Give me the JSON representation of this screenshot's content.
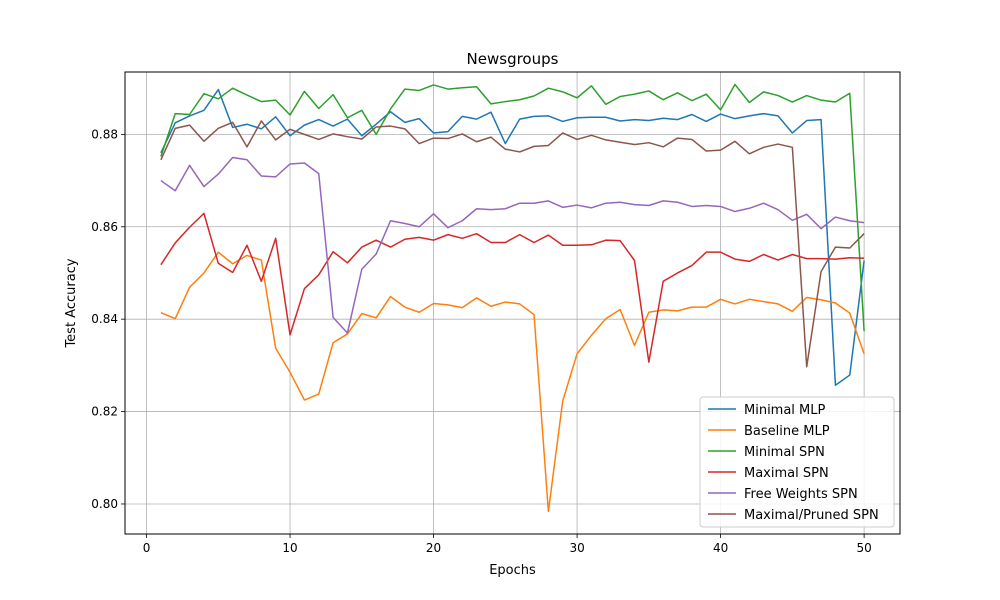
{
  "chart_data": {
    "type": "line",
    "title": "Newsgroups",
    "xlabel": "Epochs",
    "ylabel": "Test Accuracy",
    "xlim": [
      -1.5,
      52.5
    ],
    "ylim": [
      0.7935,
      0.8935
    ],
    "xticks": [
      0,
      10,
      20,
      30,
      40,
      50
    ],
    "yticks": [
      0.8,
      0.82,
      0.84,
      0.86,
      0.88
    ],
    "xtick_labels": [
      "0",
      "10",
      "20",
      "30",
      "40",
      "50"
    ],
    "ytick_labels": [
      "0.80",
      "0.82",
      "0.84",
      "0.86",
      "0.88"
    ],
    "grid": true,
    "legend_position": "lower-right",
    "x": [
      1,
      2,
      3,
      4,
      5,
      6,
      7,
      8,
      9,
      10,
      11,
      12,
      13,
      14,
      15,
      16,
      17,
      18,
      19,
      20,
      21,
      22,
      23,
      24,
      25,
      26,
      27,
      28,
      29,
      30,
      31,
      32,
      33,
      34,
      35,
      36,
      37,
      38,
      39,
      40,
      41,
      42,
      43,
      44,
      45,
      46,
      47,
      48,
      49,
      50
    ],
    "series": [
      {
        "name": "Minimal MLP",
        "color": "#1f77b4",
        "values": [
          0.876,
          0.8825,
          0.884,
          0.8852,
          0.8897,
          0.8815,
          0.8822,
          0.8812,
          0.8838,
          0.8797,
          0.882,
          0.8832,
          0.8818,
          0.8833,
          0.8797,
          0.8822,
          0.8849,
          0.8826,
          0.8834,
          0.8803,
          0.8806,
          0.8839,
          0.8833,
          0.8848,
          0.878,
          0.8833,
          0.8839,
          0.884,
          0.8828,
          0.8836,
          0.8837,
          0.8837,
          0.8829,
          0.8832,
          0.883,
          0.8835,
          0.8832,
          0.8843,
          0.8828,
          0.8844,
          0.8834,
          0.884,
          0.8845,
          0.884,
          0.8803,
          0.883,
          0.8832,
          0.8257,
          0.8279,
          0.8527
        ]
      },
      {
        "name": "Baseline MLP",
        "color": "#ff7f0e",
        "values": [
          0.8414,
          0.8401,
          0.8469,
          0.85,
          0.8545,
          0.852,
          0.8538,
          0.8528,
          0.8337,
          0.8285,
          0.8225,
          0.8238,
          0.8349,
          0.8368,
          0.8412,
          0.8403,
          0.8449,
          0.8426,
          0.8415,
          0.8434,
          0.8431,
          0.8425,
          0.8446,
          0.8428,
          0.8437,
          0.8433,
          0.841,
          0.7984,
          0.8223,
          0.8325,
          0.8365,
          0.8401,
          0.8421,
          0.8343,
          0.8415,
          0.842,
          0.8418,
          0.8426,
          0.8426,
          0.8443,
          0.8433,
          0.8443,
          0.8438,
          0.8433,
          0.8417,
          0.8447,
          0.8442,
          0.8435,
          0.8413,
          0.8325
        ]
      },
      {
        "name": "Minimal SPN",
        "color": "#2ca02c",
        "values": [
          0.8752,
          0.8845,
          0.8843,
          0.8888,
          0.8877,
          0.89,
          0.8885,
          0.8871,
          0.8874,
          0.8842,
          0.8893,
          0.8856,
          0.8886,
          0.8836,
          0.8852,
          0.88,
          0.8855,
          0.8898,
          0.8895,
          0.8907,
          0.8898,
          0.8901,
          0.8903,
          0.8866,
          0.8871,
          0.8875,
          0.8883,
          0.89,
          0.8892,
          0.8879,
          0.8905,
          0.8865,
          0.8882,
          0.8887,
          0.8894,
          0.8875,
          0.889,
          0.8873,
          0.8887,
          0.8853,
          0.8908,
          0.8869,
          0.8892,
          0.8884,
          0.887,
          0.8884,
          0.8874,
          0.887,
          0.8889,
          0.8374
        ]
      },
      {
        "name": "Maximal SPN",
        "color": "#d62728",
        "values": [
          0.8518,
          0.8565,
          0.8599,
          0.8629,
          0.8521,
          0.8501,
          0.856,
          0.8482,
          0.8575,
          0.8366,
          0.8466,
          0.8496,
          0.8546,
          0.8522,
          0.8556,
          0.8571,
          0.8556,
          0.8573,
          0.8577,
          0.8571,
          0.8583,
          0.8575,
          0.8585,
          0.8566,
          0.8566,
          0.8583,
          0.8566,
          0.8582,
          0.856,
          0.856,
          0.8561,
          0.8571,
          0.857,
          0.8527,
          0.8307,
          0.8482,
          0.85,
          0.8516,
          0.8545,
          0.8545,
          0.853,
          0.8525,
          0.854,
          0.8528,
          0.854,
          0.8531,
          0.8531,
          0.853,
          0.8533,
          0.8532
        ]
      },
      {
        "name": "Free Weights SPN",
        "color": "#9467bd",
        "values": [
          0.87,
          0.8678,
          0.8733,
          0.8687,
          0.8714,
          0.875,
          0.8745,
          0.871,
          0.8708,
          0.8736,
          0.8738,
          0.8715,
          0.8404,
          0.837,
          0.8508,
          0.8541,
          0.8613,
          0.8607,
          0.86,
          0.8628,
          0.8598,
          0.8613,
          0.8639,
          0.8637,
          0.8639,
          0.8651,
          0.8651,
          0.8656,
          0.8642,
          0.8647,
          0.8641,
          0.8651,
          0.8653,
          0.8648,
          0.8646,
          0.8656,
          0.8653,
          0.8644,
          0.8646,
          0.8644,
          0.8633,
          0.864,
          0.8651,
          0.8637,
          0.8614,
          0.8627,
          0.8596,
          0.8621,
          0.8613,
          0.8609
        ]
      },
      {
        "name": "Maximal/Pruned SPN",
        "color": "#8c564b",
        "values": [
          0.8745,
          0.8813,
          0.882,
          0.8785,
          0.8813,
          0.8826,
          0.8773,
          0.8829,
          0.8788,
          0.8811,
          0.88,
          0.8789,
          0.8801,
          0.8795,
          0.879,
          0.8816,
          0.8818,
          0.8812,
          0.878,
          0.8792,
          0.8791,
          0.8801,
          0.8784,
          0.8794,
          0.8768,
          0.8762,
          0.8774,
          0.8776,
          0.8803,
          0.8789,
          0.8798,
          0.8788,
          0.8783,
          0.8778,
          0.8782,
          0.8773,
          0.8792,
          0.8789,
          0.8764,
          0.8766,
          0.8785,
          0.8758,
          0.8772,
          0.8779,
          0.8772,
          0.8297,
          0.8503,
          0.8556,
          0.8554,
          0.8585
        ]
      }
    ]
  }
}
